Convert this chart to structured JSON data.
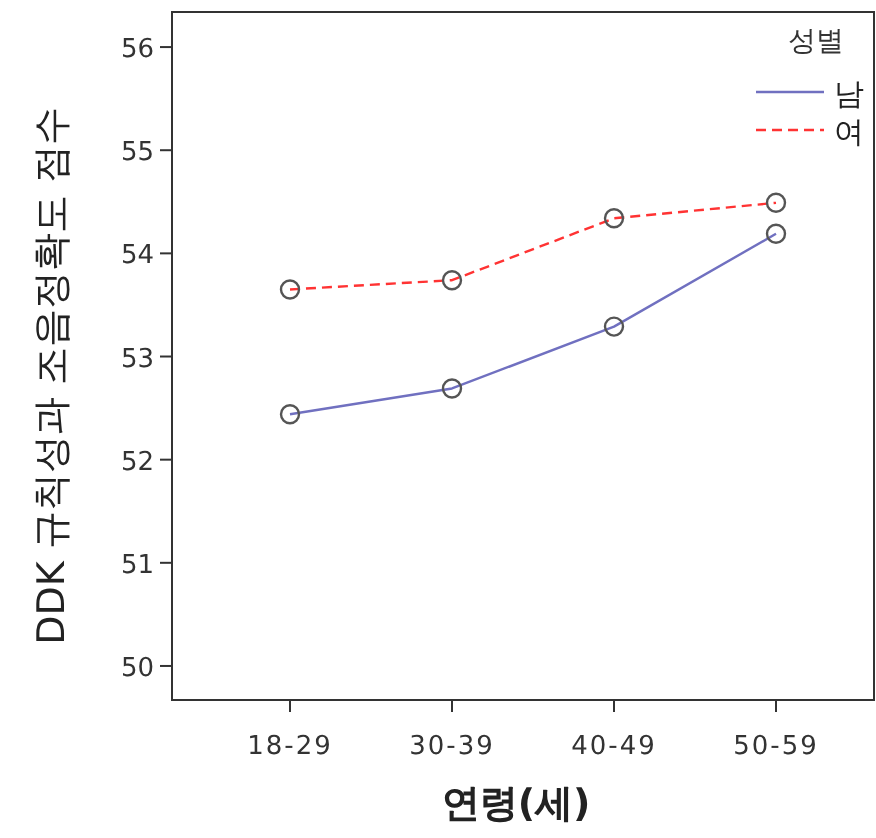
{
  "chart_data": {
    "type": "line",
    "xlabel": "연령(세)",
    "ylabel": "DDK 규칙성과 조음정확도 점수",
    "legend_title": "성별",
    "categories": [
      "18-29",
      "30-39",
      "40-49",
      "50-59"
    ],
    "series": [
      {
        "name": "남",
        "color": "#7070c0",
        "line_style": "solid",
        "values": [
          52.44,
          52.69,
          53.29,
          54.19
        ]
      },
      {
        "name": "여",
        "color": "#ff3333",
        "line_style": "dashed",
        "values": [
          53.65,
          53.74,
          54.34,
          54.49
        ]
      }
    ],
    "ylim": [
      49.67,
      56.34
    ],
    "yticks": [
      50,
      51,
      52,
      53,
      54,
      55,
      56
    ],
    "marker": "circle",
    "legend": "top right",
    "grid": false
  }
}
